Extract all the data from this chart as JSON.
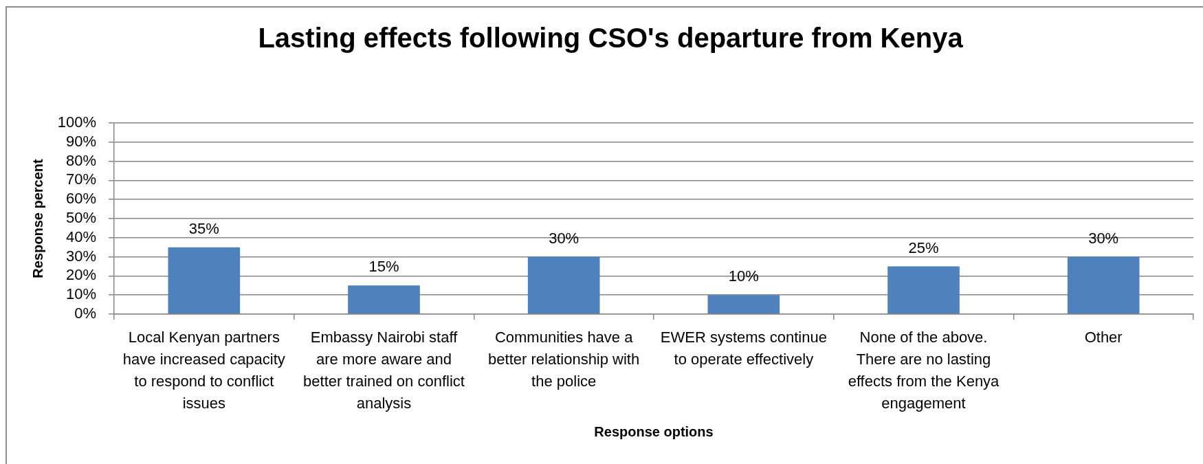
{
  "chart_data": {
    "type": "bar",
    "title": "Lasting effects following CSO's departure from Kenya",
    "xlabel": "Response options",
    "ylabel": "Response percent",
    "categories": [
      "Local Kenyan partners have increased capacity to respond to conflict issues",
      "Embassy Nairobi staff are more aware and better trained on conflict analysis",
      "Communities have a better relationship with the police",
      "EWER systems continue to operate effectively",
      "None of the above. There are no lasting effects from the Kenya engagement",
      "Other"
    ],
    "values": [
      35,
      15,
      30,
      10,
      25,
      30
    ],
    "color": "#4f81bd",
    "value_labels": [
      "35%",
      "15%",
      "30%",
      "10%",
      "25%",
      "30%"
    ],
    "ylim": [
      0,
      100
    ],
    "yticks": [
      {
        "value": 0,
        "label": "0%"
      },
      {
        "value": 10,
        "label": "10%"
      },
      {
        "value": 20,
        "label": "20%"
      },
      {
        "value": 30,
        "label": "30%"
      },
      {
        "value": 40,
        "label": "40%"
      },
      {
        "value": 50,
        "label": "50%"
      },
      {
        "value": 60,
        "label": "60%"
      },
      {
        "value": 70,
        "label": "70%"
      },
      {
        "value": 80,
        "label": "80%"
      },
      {
        "value": 90,
        "label": "90%"
      },
      {
        "value": 100,
        "label": "100%"
      }
    ],
    "grid": "y"
  }
}
